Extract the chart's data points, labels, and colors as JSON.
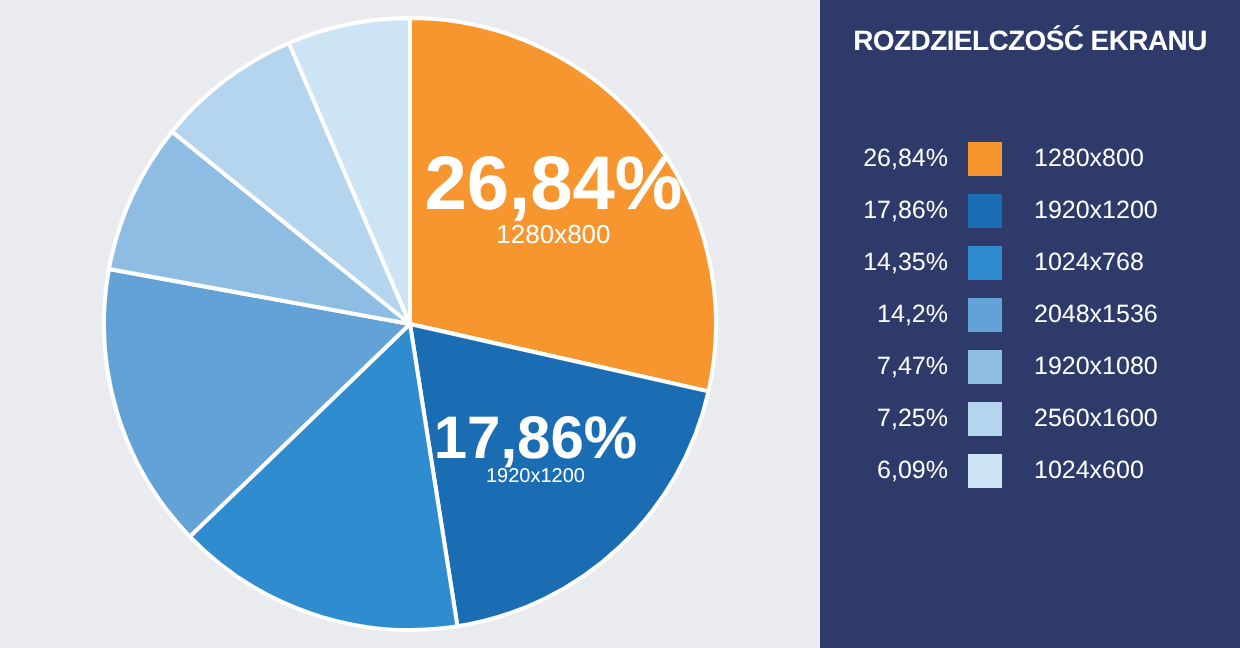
{
  "chart_data": {
    "type": "pie",
    "legend_title": "ROZDZIELCZOŚĆ EKRANU",
    "legend": "right",
    "categories": [
      "1280x800",
      "1920x1200",
      "1024x768",
      "2048x1536",
      "1920x1080",
      "2560x1600",
      "1024x600"
    ],
    "values": [
      26.84,
      17.86,
      14.35,
      14.2,
      7.47,
      7.25,
      6.09
    ],
    "value_labels": [
      "26,84%",
      "17,86%",
      "14,35%",
      "14,2%",
      "7,47%",
      "7,25%",
      "6,09%"
    ],
    "colors": [
      "#f7962f",
      "#1a6db3",
      "#2f8ccf",
      "#62a2d6",
      "#8dbde3",
      "#b5d5ee",
      "#cde4f4"
    ]
  }
}
